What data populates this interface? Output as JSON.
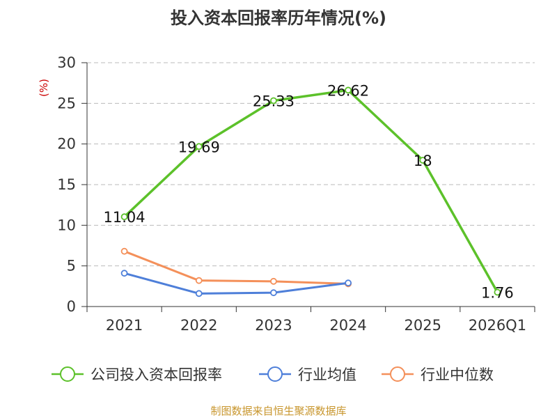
{
  "chart_data": {
    "type": "line",
    "title": "投入资本回报率历年情况(%)",
    "ylabel": "(%)",
    "xlabel": "",
    "categories": [
      "2021",
      "2022",
      "2023",
      "2024",
      "2025",
      "2026Q1"
    ],
    "ylim": [
      0,
      30
    ],
    "yticks": [
      0,
      5,
      10,
      15,
      20,
      25,
      30
    ],
    "grid": true,
    "legend_position": "bottom",
    "series": [
      {
        "name": "公司投入资本回报率",
        "color": "#5cc12a",
        "values": [
          11.04,
          19.69,
          25.33,
          26.62,
          18,
          1.76
        ],
        "labels": [
          "11.04",
          "19.69",
          "25.33",
          "26.62",
          "18",
          "1.76"
        ]
      },
      {
        "name": "行业均值",
        "color": "#4e7fd9",
        "values": [
          4.1,
          1.6,
          1.7,
          2.9,
          null,
          null
        ]
      },
      {
        "name": "行业中位数",
        "color": "#f4905a",
        "values": [
          6.8,
          3.2,
          3.1,
          2.8,
          null,
          null
        ]
      }
    ],
    "source": "制图数据来自恒生聚源数据库",
    "colors": {
      "unit": "#cc0000",
      "source": "#c8962d",
      "grid": "#bbbbbb",
      "axis": "#333333"
    }
  }
}
